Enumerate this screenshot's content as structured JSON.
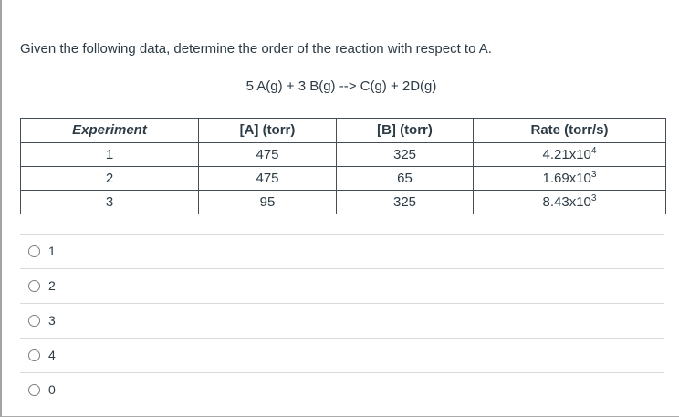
{
  "question": {
    "prompt": "Given the following data, determine the order of the reaction with respect to A.",
    "equation": "5 A(g) + 3 B(g) --> C(g) + 2D(g)"
  },
  "table": {
    "headers": [
      "Experiment",
      "[A] (torr)",
      "[B] (torr)",
      "Rate (torr/s)"
    ],
    "rows": [
      {
        "experiment": "1",
        "a": "475",
        "b": "325",
        "rate_base": "4.21x10",
        "rate_exp": "4"
      },
      {
        "experiment": "2",
        "a": "475",
        "b": "65",
        "rate_base": "1.69x10",
        "rate_exp": "3"
      },
      {
        "experiment": "3",
        "a": "95",
        "b": "325",
        "rate_base": "8.43x10",
        "rate_exp": "3"
      }
    ]
  },
  "options": [
    {
      "label": "1"
    },
    {
      "label": "2"
    },
    {
      "label": "3"
    },
    {
      "label": "4"
    },
    {
      "label": "0"
    }
  ],
  "colors": {
    "text": "#2D3B45",
    "table_border": "#454e56",
    "option_divider": "#dadada",
    "page_border": "#a3a3a3"
  }
}
